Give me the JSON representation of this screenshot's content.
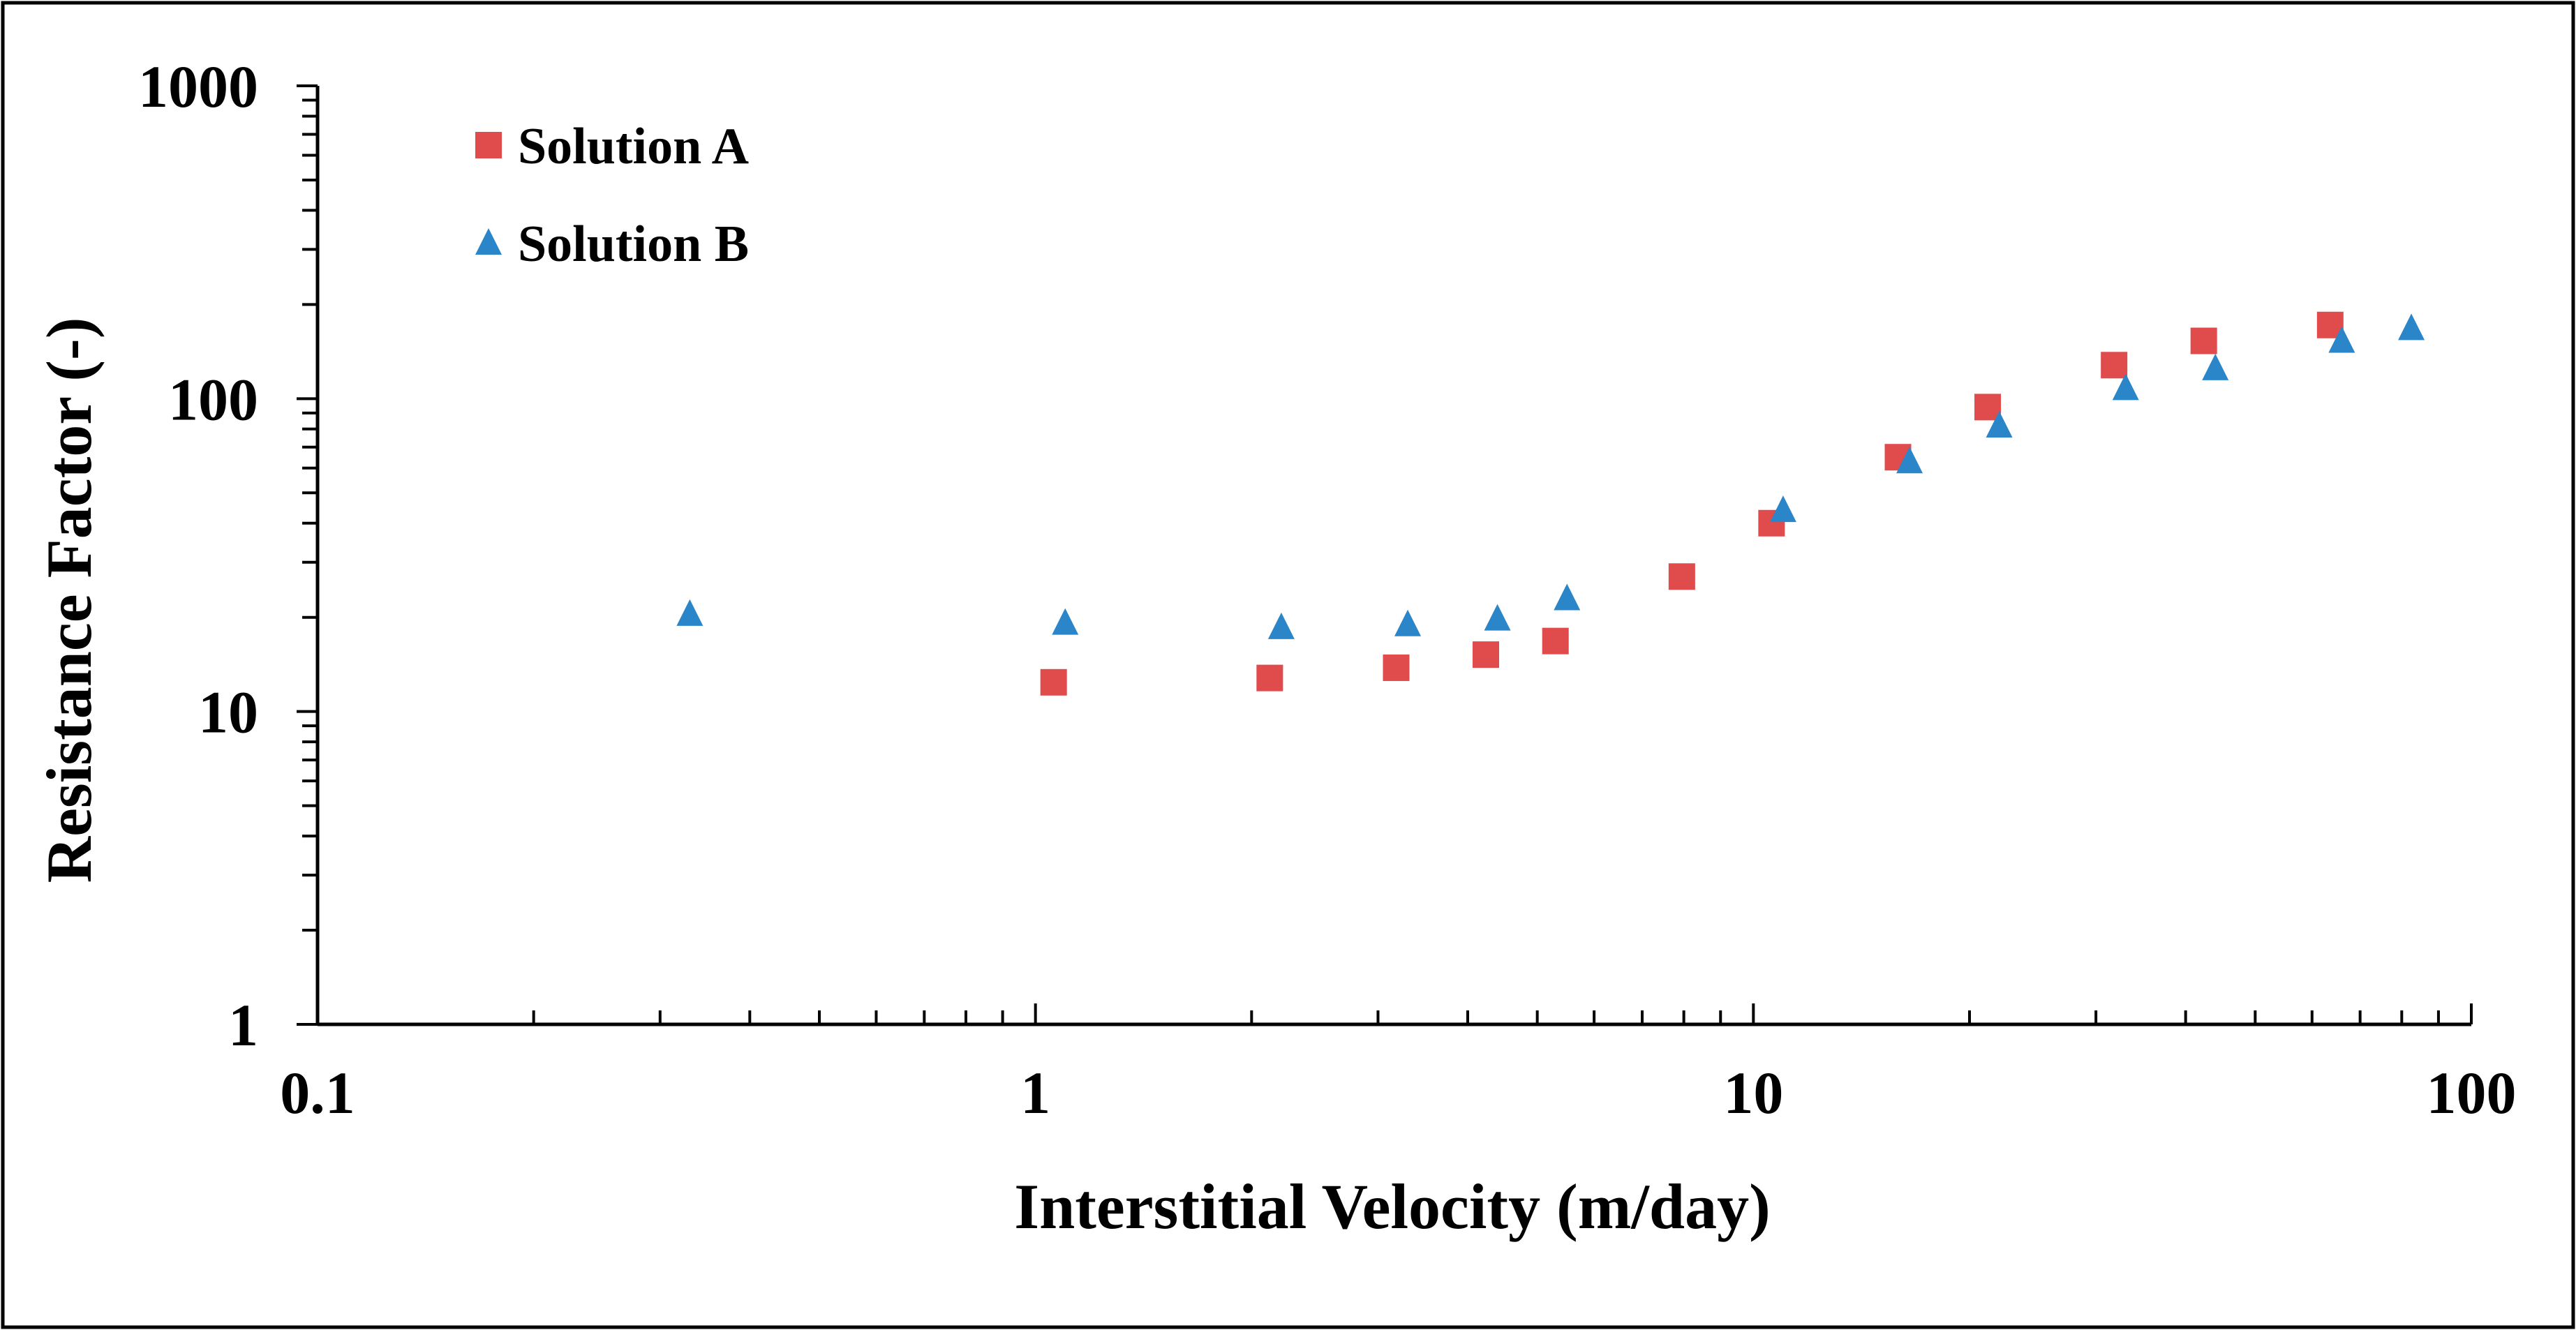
{
  "chart_data": {
    "type": "scatter",
    "title": "",
    "xlabel": "Interstitial Velocity (m/day)",
    "ylabel": "Resistance Factor (-)",
    "x_scale": "log",
    "y_scale": "log",
    "xlim": [
      0.1,
      100
    ],
    "ylim": [
      1,
      1000
    ],
    "x_ticks": [
      "0.1",
      "1",
      "10",
      "100"
    ],
    "y_ticks": [
      "1",
      "10",
      "100",
      "1000"
    ],
    "grid": false,
    "legend_position": "top-left",
    "series": [
      {
        "name": "Solution A",
        "marker": "square",
        "color": "#e04b4b",
        "points": [
          {
            "x": 1.06,
            "y": 12.4
          },
          {
            "x": 2.12,
            "y": 12.8
          },
          {
            "x": 3.18,
            "y": 13.8
          },
          {
            "x": 4.24,
            "y": 15.2
          },
          {
            "x": 5.3,
            "y": 16.8
          },
          {
            "x": 7.95,
            "y": 27
          },
          {
            "x": 10.6,
            "y": 40
          },
          {
            "x": 15.9,
            "y": 65
          },
          {
            "x": 21.2,
            "y": 94
          },
          {
            "x": 31.8,
            "y": 128
          },
          {
            "x": 42.4,
            "y": 153
          },
          {
            "x": 63.6,
            "y": 172
          }
        ]
      },
      {
        "name": "Solution B",
        "marker": "triangle",
        "color": "#2b86c9",
        "points": [
          {
            "x": 0.33,
            "y": 20.5
          },
          {
            "x": 1.1,
            "y": 19.2
          },
          {
            "x": 2.2,
            "y": 18.6
          },
          {
            "x": 3.3,
            "y": 19
          },
          {
            "x": 4.4,
            "y": 19.8
          },
          {
            "x": 5.5,
            "y": 23
          },
          {
            "x": 11,
            "y": 44
          },
          {
            "x": 16.5,
            "y": 63
          },
          {
            "x": 22,
            "y": 82
          },
          {
            "x": 33,
            "y": 108
          },
          {
            "x": 44,
            "y": 125
          },
          {
            "x": 66,
            "y": 153
          },
          {
            "x": 82.5,
            "y": 168
          }
        ]
      }
    ]
  }
}
